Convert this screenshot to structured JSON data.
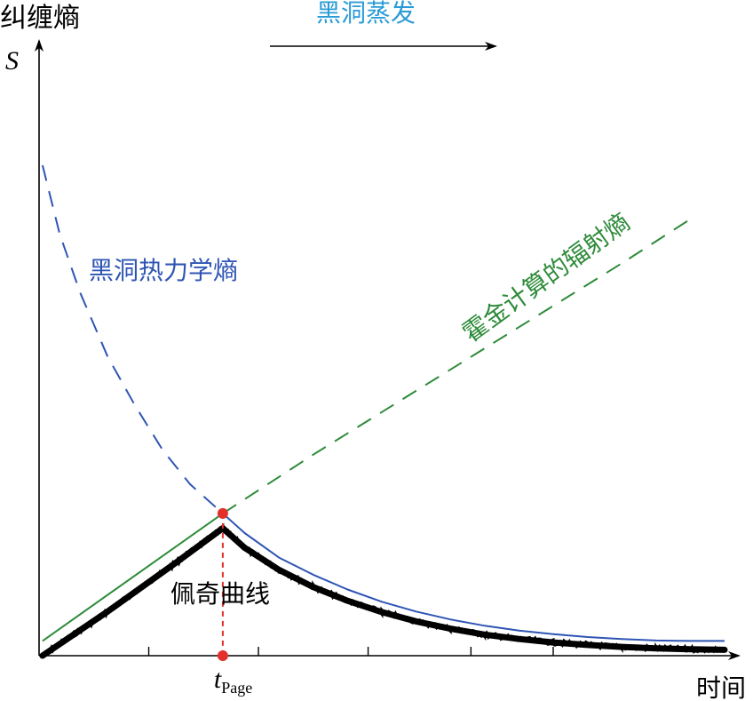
{
  "chart_data": {
    "type": "line",
    "title": "",
    "xlabel": "时间",
    "ylabel_cn": "纠缠熵",
    "ylabel_symbol": "S",
    "header_annotation": "黑洞蒸发",
    "xlim": [
      0,
      1
    ],
    "ylim": [
      0,
      1
    ],
    "x_ticks": [
      0.16,
      0.32,
      0.48,
      0.63,
      0.75
    ],
    "page_time": {
      "x": 0.268,
      "label_main": "t",
      "label_sub": "Page",
      "point_value": 0.29
    },
    "series": [
      {
        "name": "黑洞热力学熵",
        "style": "dashed",
        "color": "#2f55b4",
        "x": [
          0.005,
          0.03,
          0.06,
          0.1,
          0.14,
          0.18,
          0.22,
          0.268
        ],
        "y": [
          1.0,
          0.86,
          0.74,
          0.61,
          0.51,
          0.42,
          0.35,
          0.29
        ]
      },
      {
        "name": "霍金计算的辐射熵",
        "style": "dashed",
        "color": "#2e8b3a",
        "x": [
          0.268,
          0.4,
          0.55,
          0.7,
          0.85,
          0.95
        ],
        "y": [
          0.29,
          0.41,
          0.54,
          0.67,
          0.8,
          0.89
        ]
      },
      {
        "name": "",
        "style": "solid",
        "color": "#2e8b3a",
        "x": [
          0.005,
          0.268
        ],
        "y": [
          0.03,
          0.29
        ]
      },
      {
        "name": "",
        "style": "solid",
        "color": "#2f55b4",
        "x": [
          0.268,
          0.3,
          0.35,
          0.4,
          0.45,
          0.5,
          0.55,
          0.6,
          0.65,
          0.7,
          0.75,
          0.8,
          0.85,
          0.9,
          0.95,
          1.0
        ],
        "y": [
          0.29,
          0.25,
          0.2,
          0.165,
          0.135,
          0.11,
          0.09,
          0.074,
          0.061,
          0.051,
          0.044,
          0.038,
          0.034,
          0.031,
          0.03,
          0.03
        ]
      },
      {
        "name": "佩奇曲线",
        "style": "thick-noisy",
        "color": "#000000",
        "x": [
          0.005,
          0.1,
          0.2,
          0.268,
          0.3,
          0.35,
          0.4,
          0.45,
          0.5,
          0.55,
          0.6,
          0.65,
          0.7,
          0.75,
          0.8,
          0.85,
          0.9,
          0.95,
          1.0
        ],
        "y": [
          0.0,
          0.09,
          0.19,
          0.26,
          0.22,
          0.175,
          0.14,
          0.112,
          0.089,
          0.07,
          0.055,
          0.043,
          0.034,
          0.027,
          0.022,
          0.018,
          0.015,
          0.013,
          0.012
        ]
      }
    ],
    "series_labels": {
      "bh_entropy": "黑洞热力学熵",
      "hawking": "霍金计算的辐射熵",
      "page_curve": "佩奇曲线"
    },
    "colors": {
      "axis": "#000000",
      "blue": "#2f55b4",
      "green": "#2e8b3a",
      "red": "#e3302a",
      "header": "#2a9bd6"
    },
    "grid": false,
    "legend": "none"
  }
}
